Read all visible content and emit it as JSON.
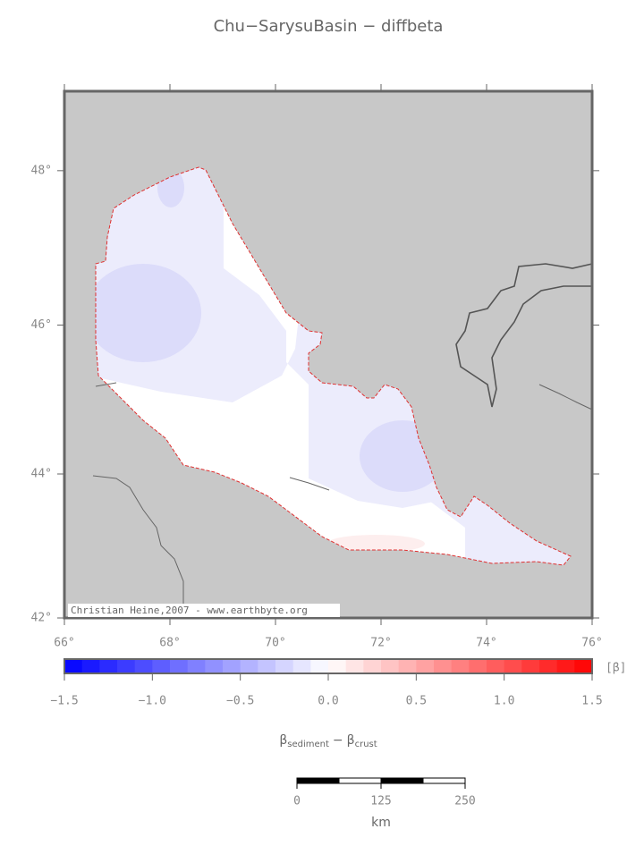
{
  "title": "Chu−SarysuBasin − diffbeta",
  "map": {
    "lonlim": [
      66,
      76
    ],
    "latlim": [
      42,
      49
    ],
    "xticks": [
      {
        "value": 66,
        "label": "66°"
      },
      {
        "value": 68,
        "label": "68°"
      },
      {
        "value": 70,
        "label": "70°"
      },
      {
        "value": 72,
        "label": "72°"
      },
      {
        "value": 74,
        "label": "74°"
      },
      {
        "value": 76,
        "label": "76°"
      }
    ],
    "yticks": [
      {
        "value": 42,
        "label": "42°"
      },
      {
        "value": 44,
        "label": "44°"
      },
      {
        "value": 46,
        "label": "46°"
      },
      {
        "value": 48,
        "label": "48°"
      }
    ],
    "credit": "Christian Heine,2007 - www.earthbyte.org"
  },
  "colorbar": {
    "lim": [
      -1.5,
      1.5
    ],
    "step": 0.1,
    "colors": [
      "#0000ff",
      "#ffffff",
      "#ff0000"
    ],
    "ticks": [
      {
        "value": -1.5,
        "label": "−1.5"
      },
      {
        "value": -1,
        "label": "−1.0"
      },
      {
        "value": -0.5,
        "label": "−0.5"
      },
      {
        "value": 0,
        "label": "0.0"
      },
      {
        "value": 0.5,
        "label": "0.5"
      },
      {
        "value": 1,
        "label": "1.0"
      },
      {
        "value": 1.5,
        "label": "1.5"
      }
    ],
    "unit": "[β]",
    "label": {
      "symbol1": "β",
      "sub1": "sediment",
      "minus": "−",
      "symbol2": "β",
      "sub2": "crust"
    }
  },
  "scalebar": {
    "ticks": [
      0,
      125,
      250
    ],
    "unit": "km"
  }
}
